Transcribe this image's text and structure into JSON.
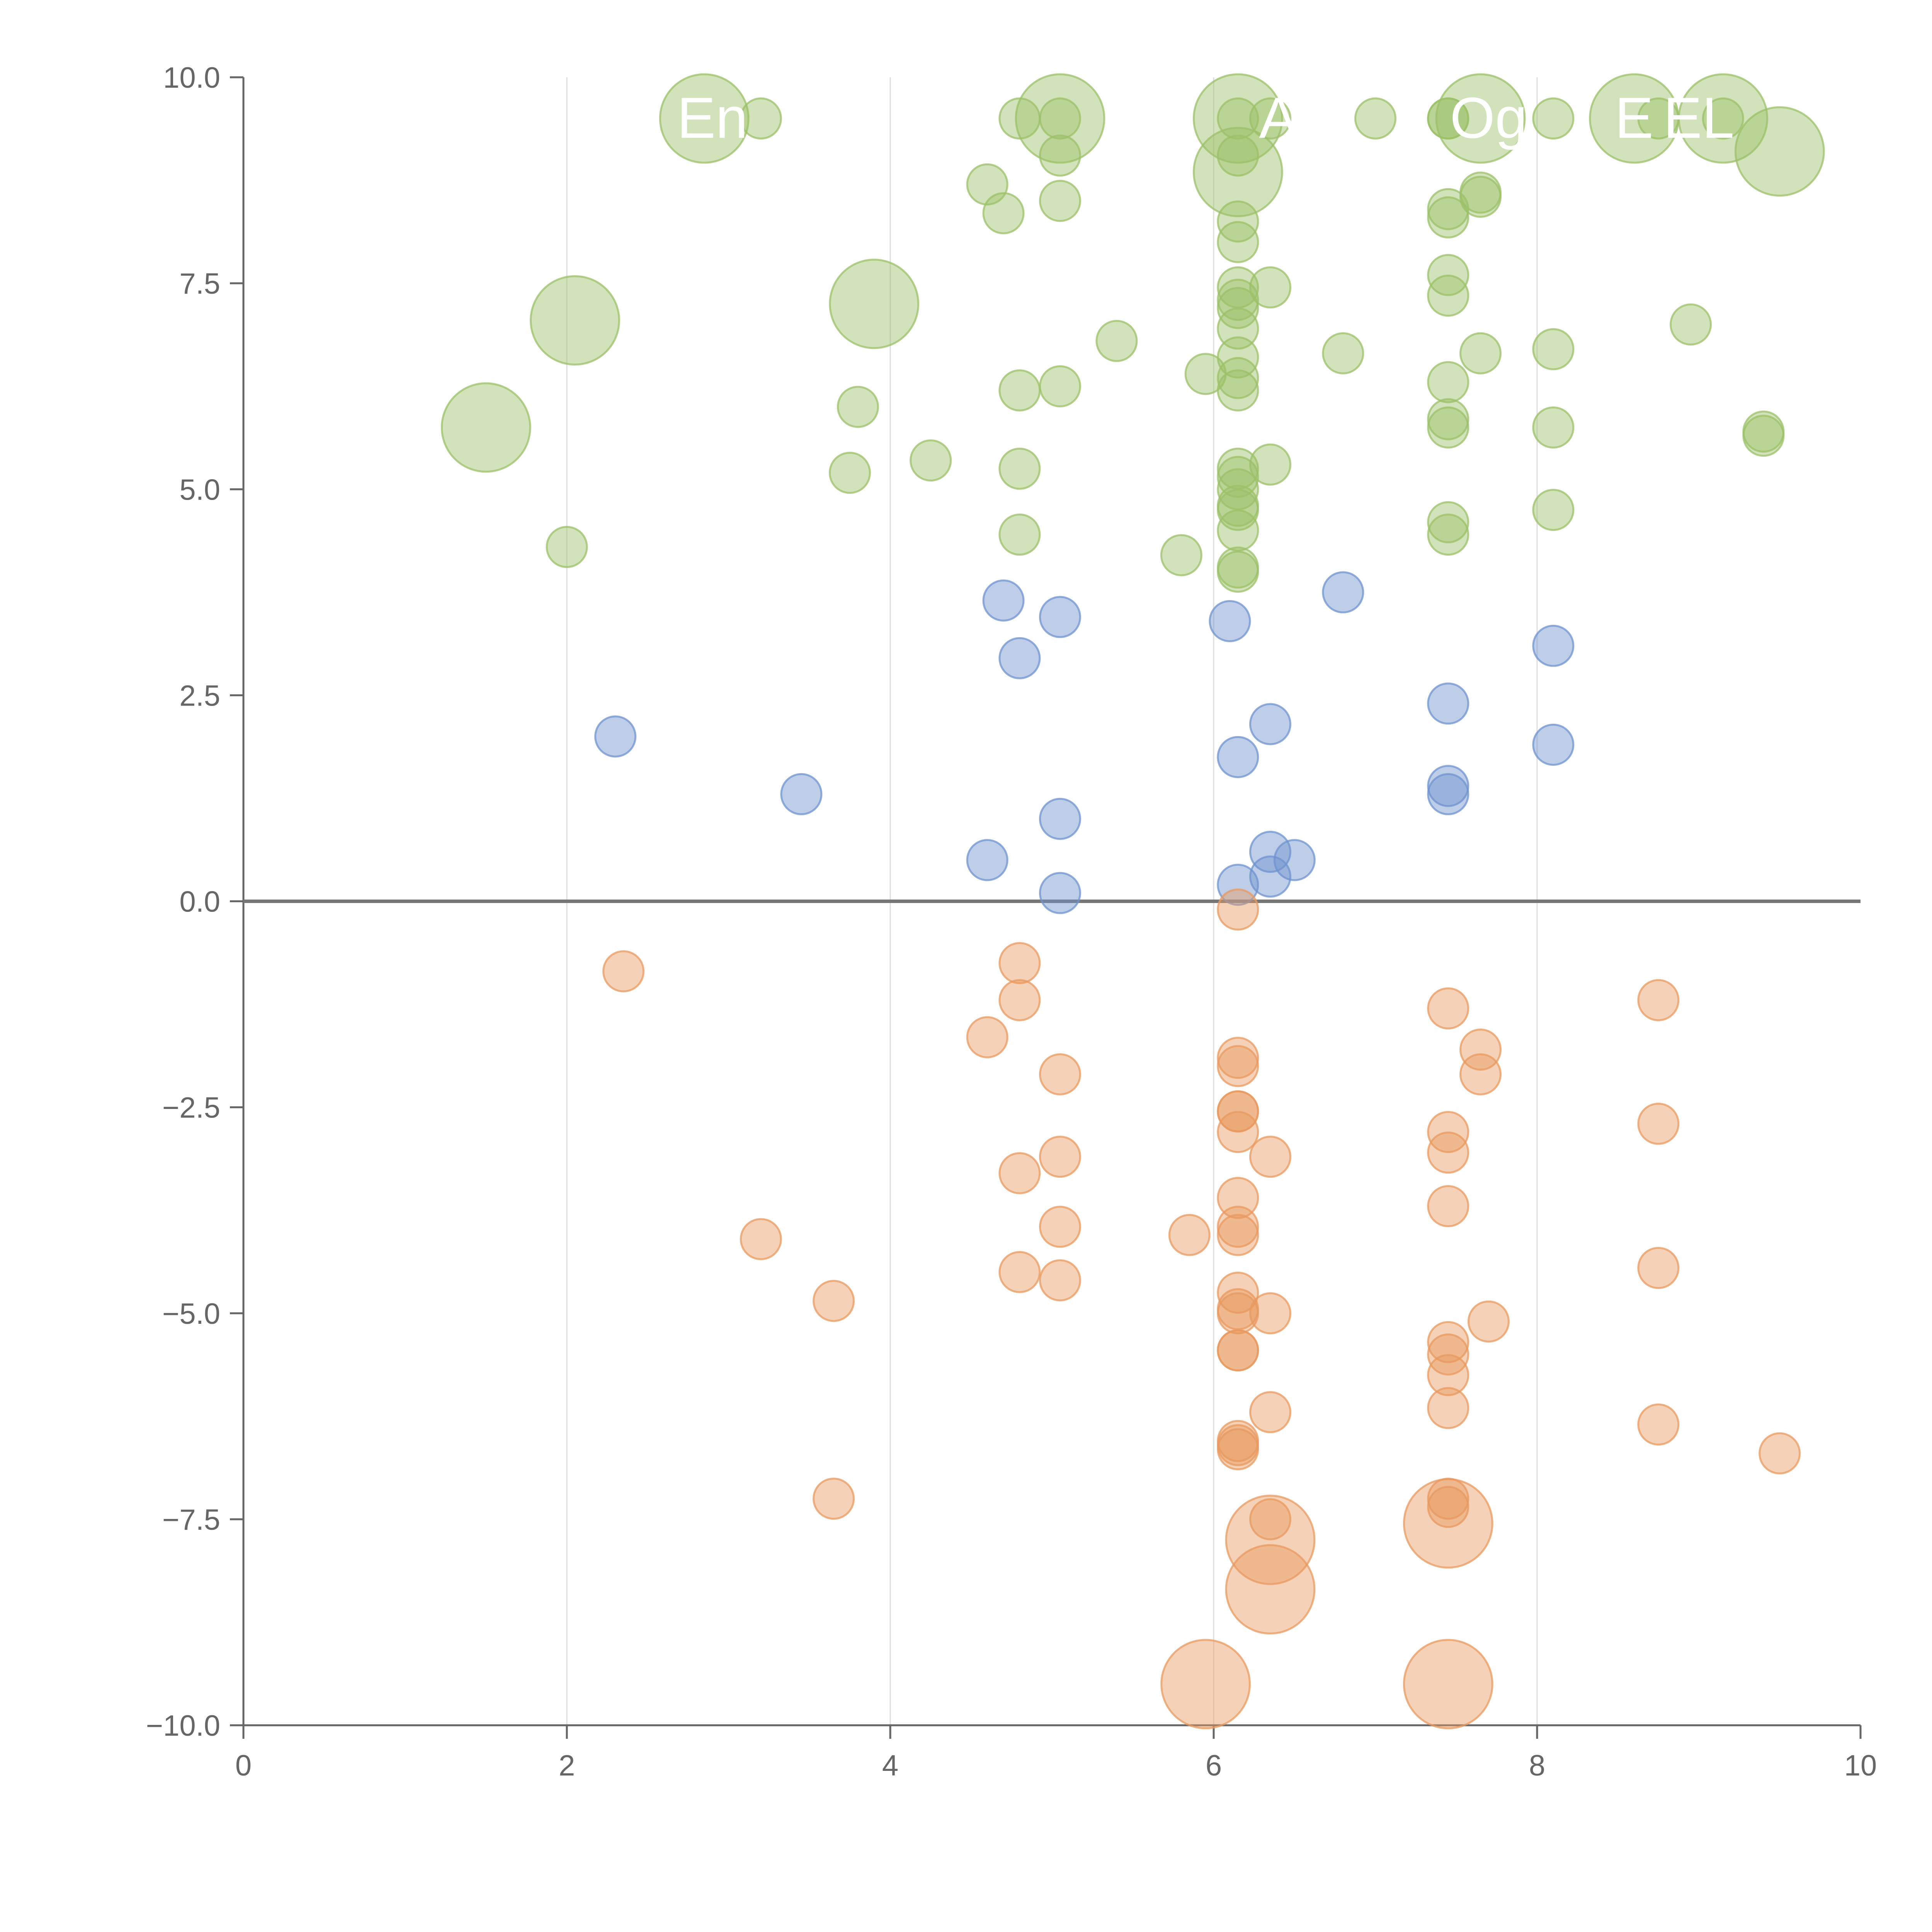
{
  "chart_data": {
    "type": "scatter",
    "title": "",
    "xlabel": "",
    "ylabel": "",
    "xlim": [
      0,
      10
    ],
    "ylim": [
      -10,
      10
    ],
    "x_ticks": [
      0,
      2,
      4,
      6,
      8,
      10
    ],
    "y_ticks": [
      -10,
      -7.5,
      -5,
      -2.5,
      0,
      2.5,
      5,
      7.5,
      10
    ],
    "x_tick_labels": [
      "0",
      "2",
      "4",
      "6",
      "8",
      "10"
    ],
    "y_tick_labels": [
      "−10.0",
      "−7.5",
      "−5.0",
      "−2.5",
      "0.0",
      "2.5",
      "5.0",
      "7.5",
      "10.0"
    ],
    "grid": "vertical",
    "legend": "none",
    "colors": {
      "positive": "#9cc068",
      "neutral": "#6f93cf",
      "negative": "#e89a5f",
      "axis": "#666666",
      "grid": "#dddddd",
      "zero_line": "#777777"
    },
    "annotations": [
      {
        "text": "En",
        "x": 2.9,
        "y": 9.5
      },
      {
        "text": "A",
        "x": 6.4,
        "y": 9.5
      },
      {
        "text": "Og",
        "x": 7.7,
        "y": 9.5
      },
      {
        "text": "E",
        "x": 8.6,
        "y": 9.5
      },
      {
        "text": "EL",
        "x": 9.0,
        "y": 9.5
      }
    ],
    "series": [
      {
        "name": "positive",
        "color": "#9cc068",
        "points": [
          [
            2.85,
            9.5,
            2.2
          ],
          [
            5.05,
            9.5,
            2.2
          ],
          [
            6.15,
            9.5,
            2.2
          ],
          [
            7.65,
            9.5,
            2.2
          ],
          [
            8.6,
            9.5,
            2.2
          ],
          [
            9.15,
            9.5,
            2.2
          ],
          [
            9.5,
            9.1,
            2.2
          ],
          [
            6.15,
            8.85,
            2.2
          ],
          [
            3.9,
            7.25,
            2.2
          ],
          [
            2.05,
            7.05,
            2.2
          ],
          [
            1.5,
            5.75,
            2.2
          ],
          [
            3.2,
            9.5,
            1
          ],
          [
            4.8,
            9.5,
            1
          ],
          [
            5.05,
            9.5,
            1
          ],
          [
            6.35,
            9.5,
            1
          ],
          [
            7.0,
            9.5,
            1
          ],
          [
            7.45,
            9.5,
            1
          ],
          [
            7.45,
            9.5,
            1
          ],
          [
            8.1,
            9.5,
            1
          ],
          [
            8.75,
            9.5,
            1
          ],
          [
            9.15,
            9.5,
            1
          ],
          [
            6.15,
            9.5,
            1
          ],
          [
            5.05,
            9.05,
            1
          ],
          [
            6.15,
            9.05,
            1
          ],
          [
            4.6,
            8.7,
            1
          ],
          [
            4.7,
            8.35,
            1
          ],
          [
            5.05,
            8.5,
            1
          ],
          [
            7.45,
            8.4,
            1
          ],
          [
            7.45,
            8.3,
            1
          ],
          [
            6.15,
            8.25,
            1
          ],
          [
            7.65,
            8.6,
            1
          ],
          [
            7.65,
            8.55,
            1
          ],
          [
            6.15,
            8.0,
            1
          ],
          [
            7.45,
            7.6,
            1
          ],
          [
            6.15,
            7.45,
            1
          ],
          [
            6.35,
            7.45,
            1
          ],
          [
            6.15,
            7.3,
            1
          ],
          [
            7.45,
            7.35,
            1
          ],
          [
            6.15,
            7.2,
            1
          ],
          [
            8.95,
            7.0,
            1
          ],
          [
            6.15,
            6.95,
            1
          ],
          [
            5.4,
            6.8,
            1
          ],
          [
            6.8,
            6.65,
            1
          ],
          [
            7.65,
            6.65,
            1
          ],
          [
            8.1,
            6.7,
            1
          ],
          [
            6.15,
            6.6,
            1
          ],
          [
            5.95,
            6.4,
            1
          ],
          [
            7.45,
            6.3,
            1
          ],
          [
            6.15,
            6.35,
            1
          ],
          [
            6.15,
            6.2,
            1
          ],
          [
            4.8,
            6.2,
            1
          ],
          [
            5.05,
            6.25,
            1
          ],
          [
            3.8,
            6.0,
            1
          ],
          [
            7.45,
            5.85,
            1
          ],
          [
            7.45,
            5.75,
            1
          ],
          [
            8.1,
            5.75,
            1
          ],
          [
            9.4,
            5.7,
            1
          ],
          [
            9.4,
            5.65,
            1
          ],
          [
            4.25,
            5.35,
            1
          ],
          [
            3.75,
            5.2,
            1
          ],
          [
            4.8,
            5.25,
            1
          ],
          [
            6.35,
            5.3,
            1
          ],
          [
            6.15,
            5.25,
            1
          ],
          [
            6.15,
            5.15,
            1
          ],
          [
            6.15,
            5.0,
            1
          ],
          [
            6.15,
            4.8,
            1
          ],
          [
            6.15,
            4.75,
            1
          ],
          [
            8.1,
            4.75,
            1
          ],
          [
            7.45,
            4.6,
            1
          ],
          [
            7.45,
            4.45,
            1
          ],
          [
            6.15,
            4.5,
            1
          ],
          [
            4.8,
            4.45,
            1
          ],
          [
            2.0,
            4.3,
            1
          ],
          [
            5.8,
            4.2,
            1
          ],
          [
            6.15,
            4.05,
            1
          ],
          [
            6.15,
            4.0,
            1
          ]
        ]
      },
      {
        "name": "neutral",
        "color": "#6f93cf",
        "points": [
          [
            4.7,
            3.65,
            1
          ],
          [
            6.8,
            3.75,
            1
          ],
          [
            5.05,
            3.45,
            1
          ],
          [
            6.1,
            3.4,
            1
          ],
          [
            8.1,
            3.1,
            1
          ],
          [
            4.8,
            2.95,
            1
          ],
          [
            7.45,
            2.4,
            1
          ],
          [
            6.35,
            2.15,
            1
          ],
          [
            2.3,
            2.0,
            1
          ],
          [
            8.1,
            1.9,
            1
          ],
          [
            6.15,
            1.75,
            1
          ],
          [
            7.45,
            1.4,
            1
          ],
          [
            7.45,
            1.3,
            1
          ],
          [
            3.45,
            1.3,
            1
          ],
          [
            5.05,
            1.0,
            1
          ],
          [
            6.35,
            0.6,
            1
          ],
          [
            6.5,
            0.5,
            1
          ],
          [
            4.6,
            0.5,
            1
          ],
          [
            6.35,
            0.3,
            1
          ],
          [
            6.15,
            0.2,
            1
          ],
          [
            5.05,
            0.1,
            1
          ]
        ]
      },
      {
        "name": "negative",
        "color": "#e89a5f",
        "points": [
          [
            6.15,
            -0.1,
            1
          ],
          [
            4.8,
            -0.75,
            1
          ],
          [
            2.35,
            -0.85,
            1
          ],
          [
            4.8,
            -1.2,
            1
          ],
          [
            8.75,
            -1.2,
            1
          ],
          [
            7.45,
            -1.3,
            1
          ],
          [
            4.6,
            -1.65,
            1
          ],
          [
            7.65,
            -1.8,
            1
          ],
          [
            6.15,
            -1.9,
            1
          ],
          [
            6.15,
            -2.0,
            1
          ],
          [
            5.05,
            -2.1,
            1
          ],
          [
            7.65,
            -2.1,
            1
          ],
          [
            6.15,
            -2.55,
            1
          ],
          [
            6.15,
            -2.55,
            1
          ],
          [
            8.75,
            -2.7,
            1
          ],
          [
            6.15,
            -2.8,
            1
          ],
          [
            7.45,
            -2.8,
            1
          ],
          [
            7.45,
            -3.05,
            1
          ],
          [
            5.05,
            -3.1,
            1
          ],
          [
            6.35,
            -3.1,
            1
          ],
          [
            4.8,
            -3.3,
            1
          ],
          [
            6.15,
            -3.6,
            1
          ],
          [
            7.45,
            -3.7,
            1
          ],
          [
            5.05,
            -3.95,
            1
          ],
          [
            6.15,
            -3.95,
            1
          ],
          [
            6.15,
            -4.05,
            1
          ],
          [
            5.85,
            -4.05,
            1
          ],
          [
            3.2,
            -4.1,
            1
          ],
          [
            8.75,
            -4.45,
            1
          ],
          [
            4.8,
            -4.5,
            1
          ],
          [
            5.05,
            -4.6,
            1
          ],
          [
            6.15,
            -4.75,
            1
          ],
          [
            3.65,
            -4.85,
            1
          ],
          [
            6.15,
            -4.95,
            1
          ],
          [
            6.15,
            -5.0,
            1
          ],
          [
            6.35,
            -5.0,
            1
          ],
          [
            7.7,
            -5.1,
            1
          ],
          [
            7.45,
            -5.35,
            1
          ],
          [
            7.45,
            -5.5,
            1
          ],
          [
            6.15,
            -5.45,
            1
          ],
          [
            6.15,
            -5.45,
            1
          ],
          [
            7.45,
            -5.75,
            1
          ],
          [
            7.45,
            -6.15,
            1
          ],
          [
            6.35,
            -6.2,
            1
          ],
          [
            8.75,
            -6.35,
            1
          ],
          [
            6.15,
            -6.55,
            1
          ],
          [
            6.15,
            -6.65,
            1
          ],
          [
            6.15,
            -6.6,
            1
          ],
          [
            9.5,
            -6.7,
            1
          ],
          [
            3.65,
            -7.25,
            1
          ],
          [
            7.45,
            -7.25,
            1
          ],
          [
            7.45,
            -7.35,
            1
          ],
          [
            6.35,
            -7.5,
            1
          ],
          [
            7.45,
            -7.55,
            2.2
          ],
          [
            6.35,
            -7.75,
            2.2
          ],
          [
            6.35,
            -8.35,
            2.2
          ],
          [
            5.95,
            -9.5,
            2.2
          ],
          [
            7.45,
            -9.5,
            2.2
          ]
        ]
      }
    ]
  }
}
